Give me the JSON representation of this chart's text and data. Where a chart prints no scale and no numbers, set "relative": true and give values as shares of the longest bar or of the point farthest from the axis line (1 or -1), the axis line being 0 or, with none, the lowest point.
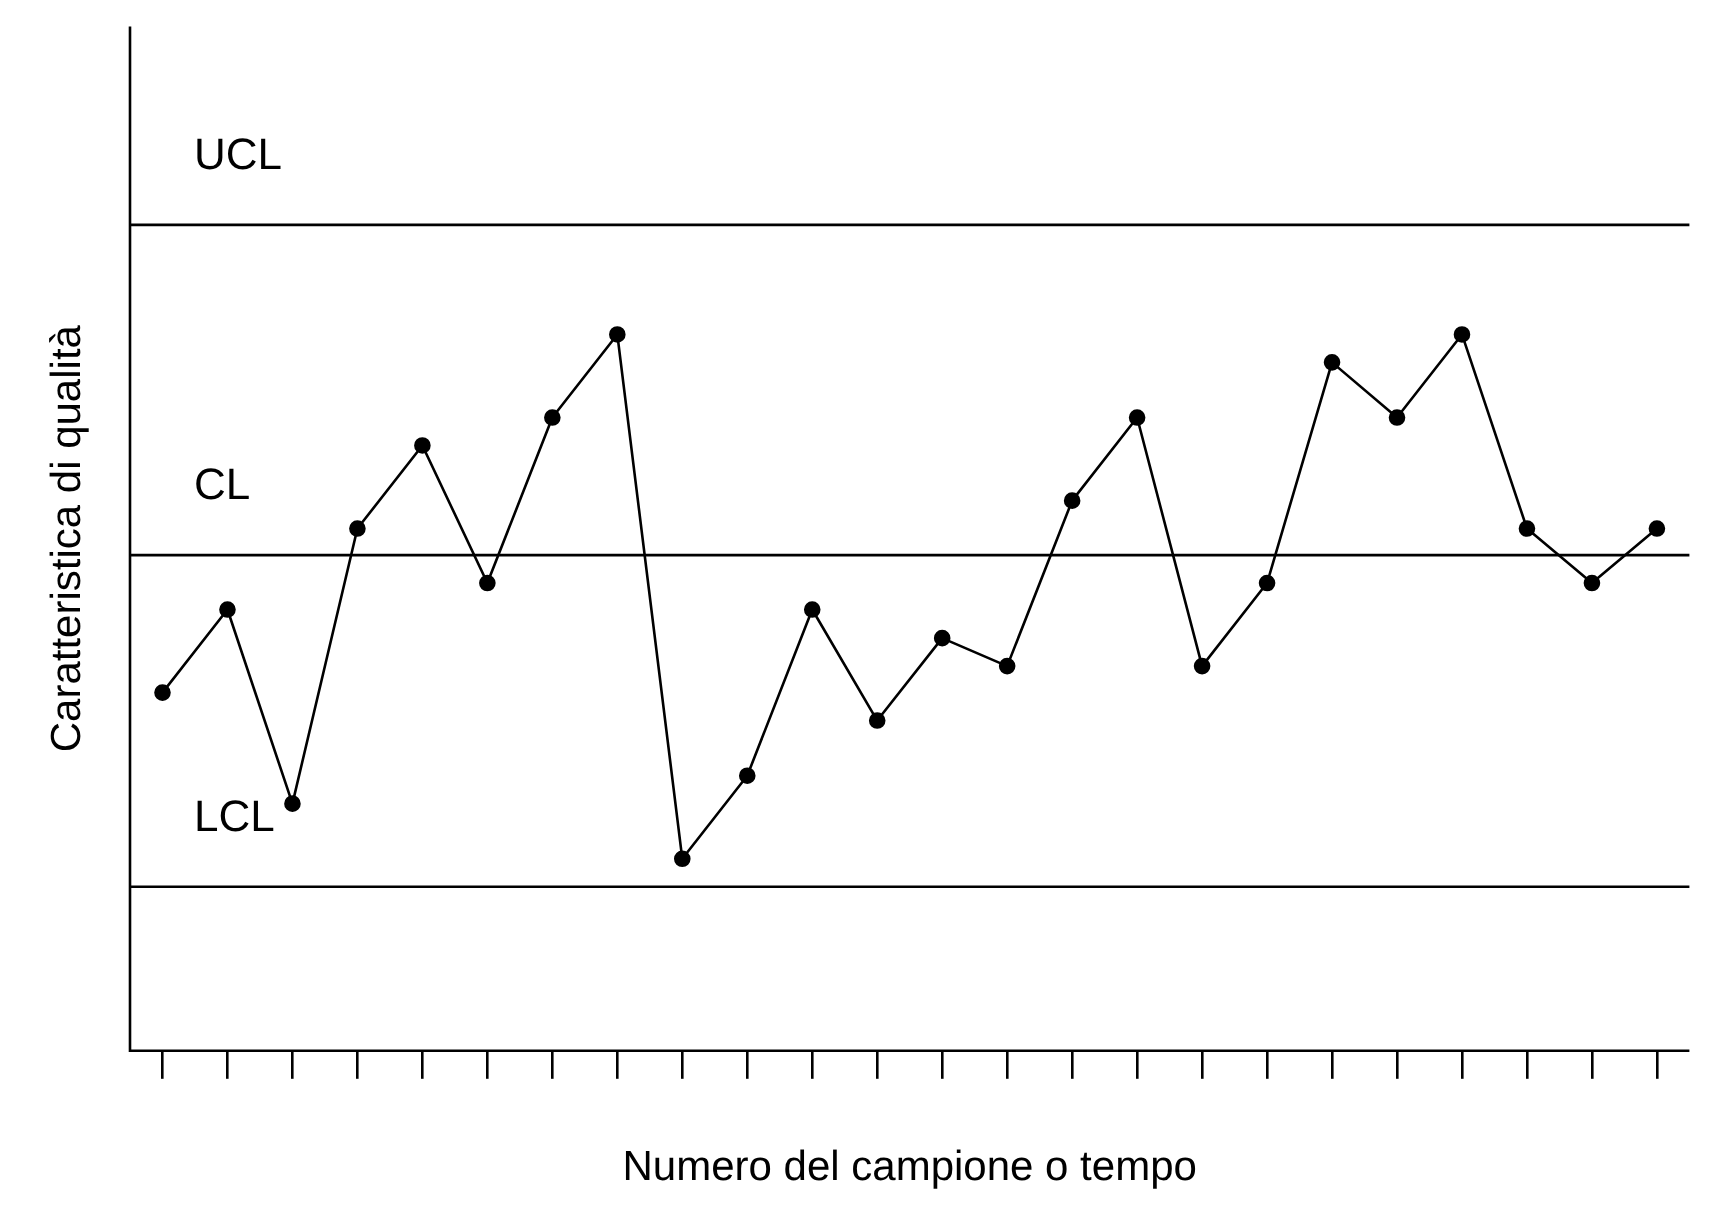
{
  "chart_data": {
    "type": "line",
    "relative": true,
    "xlabel": "Numero del campione o tempo",
    "ylabel": "Caratteristica di qualità",
    "categories": [
      null,
      null,
      null,
      null,
      null,
      null,
      null,
      null,
      null,
      null,
      null,
      null,
      null,
      null,
      null,
      null,
      null,
      null,
      null,
      null,
      null,
      null,
      null,
      null
    ],
    "series": [
      {
        "color": "#000000",
        "values": [
          0.5,
          0.616,
          0.345,
          0.729,
          0.845,
          0.653,
          0.884,
          1,
          0.268,
          0.384,
          0.616,
          0.461,
          0.576,
          0.537,
          0.768,
          0.884,
          0.537,
          0.653,
          0.961,
          0.884,
          1,
          0.729,
          0.653,
          0.729
        ]
      }
    ],
    "ref_lines": [
      {
        "axis": "y",
        "value": 1.153,
        "label": "UCL",
        "color": "#000000"
      },
      {
        "axis": "y",
        "value": 0.692,
        "label": "CL",
        "color": "#000000"
      },
      {
        "axis": "y",
        "value": 0.229,
        "label": "LCL",
        "color": "#000000"
      }
    ],
    "marker": "circle",
    "line_style": "solid",
    "legend": false,
    "grid": false
  }
}
